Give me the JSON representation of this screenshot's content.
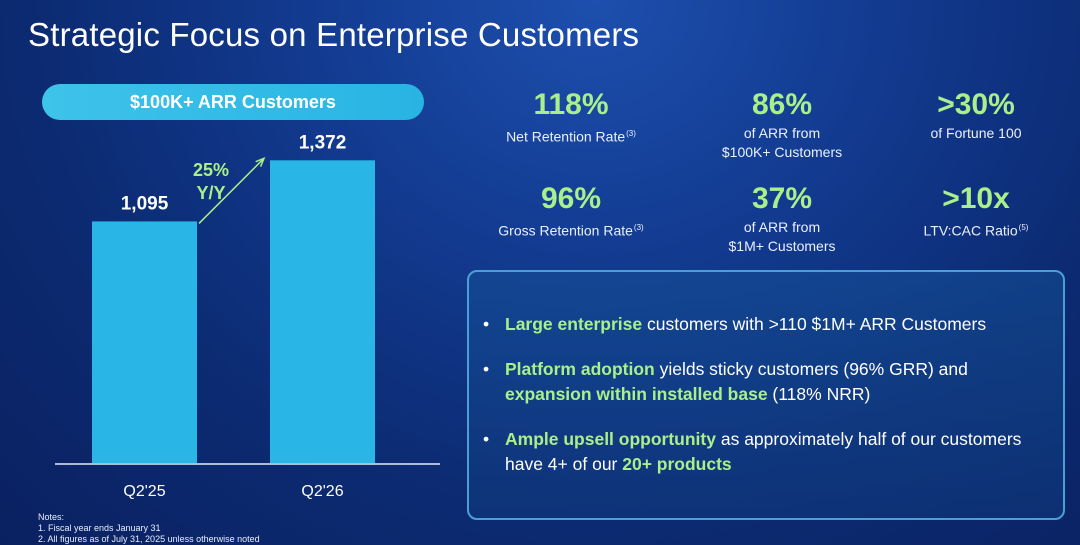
{
  "title": "Strategic Focus on Enterprise Customers",
  "pill_label": "$100K+ ARR Customers",
  "chart_data": {
    "type": "bar",
    "categories": [
      "Q2'25",
      "Q2'26"
    ],
    "values": [
      1095,
      1372
    ],
    "value_labels": [
      "1,095",
      "1,372"
    ],
    "ylim": [
      0,
      1600
    ],
    "annotation": {
      "line1": "25%",
      "line2": "Y/Y"
    },
    "bar_color": "#29b6e6",
    "annotation_color": "#a9f08b"
  },
  "metrics": [
    {
      "value": "118%",
      "label": "Net Retention Rate",
      "sup": "(3)",
      "label2": ""
    },
    {
      "value": "86%",
      "label": "of ARR from",
      "sup": "",
      "label2": "$100K+ Customers"
    },
    {
      "value": ">30%",
      "label": "of Fortune 100",
      "sup": "",
      "label2": ""
    },
    {
      "value": "96%",
      "label": "Gross Retention Rate",
      "sup": "(3)",
      "label2": ""
    },
    {
      "value": "37%",
      "label": "of ARR from",
      "sup": "",
      "label2": "$1M+ Customers"
    },
    {
      "value": ">10x",
      "label": "LTV:CAC Ratio",
      "sup": "(5)",
      "label2": ""
    }
  ],
  "bullets": [
    {
      "bullet": "•",
      "h1": "Large enterprise",
      "t1": " customers with >110 $1M+ ARR Customers",
      "h2": "",
      "t2": ""
    },
    {
      "bullet": "•",
      "h1": "Platform adoption",
      "t1": " yields sticky customers (96% GRR) and ",
      "h2": "expansion within installed base",
      "t2": " (118% NRR)"
    },
    {
      "bullet": "•",
      "h1": "Ample upsell opportunity",
      "t1": " as approximately half of our customers have 4+ of our ",
      "h2": "20+ products",
      "t2": ""
    }
  ],
  "notes": {
    "heading": "Notes:",
    "items": [
      "1. Fiscal year ends January 31",
      "2. All figures as of July 31, 2025 unless otherwise noted"
    ]
  },
  "colors": {
    "accent": "#a9f08b",
    "bar": "#29b6e6"
  }
}
